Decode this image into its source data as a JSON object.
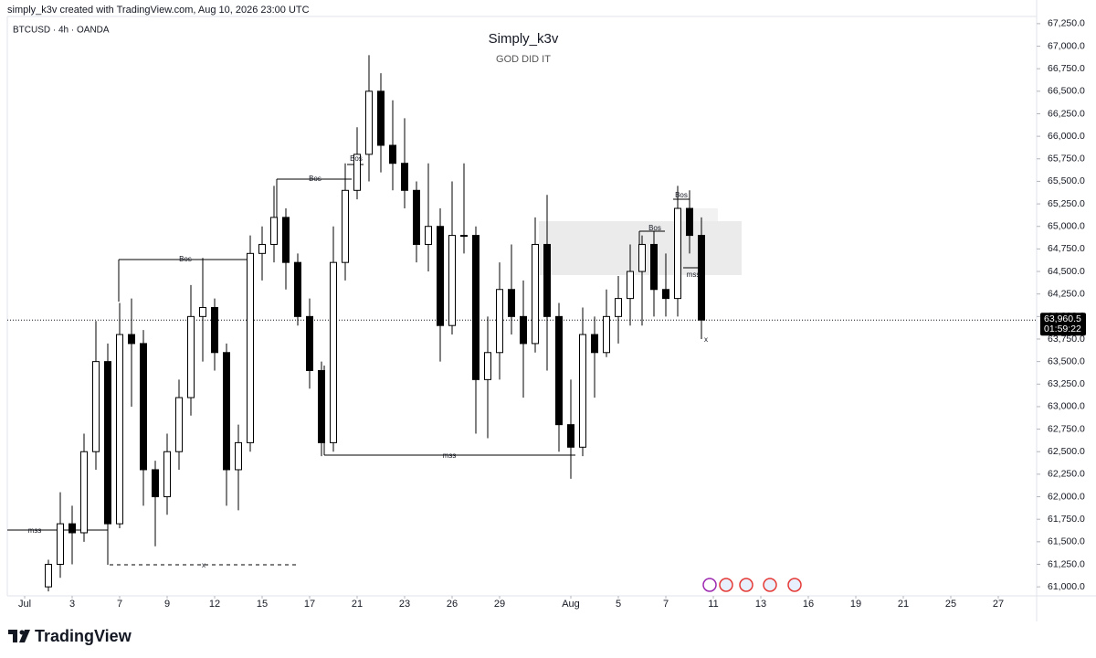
{
  "header": {
    "attribution": "simply_k3v created with TradingView.com, Aug 10, 2026 23:00 UTC",
    "logo": "TradingView"
  },
  "chart_data": {
    "type": "candlestick",
    "symbol": "BTCUSD · 4h · OANDA",
    "title": "Simply_k3v",
    "subtitle": "GOD DID IT",
    "categories": [
      "Jul",
      null,
      null,
      null,
      "3",
      null,
      null,
      null,
      "7",
      null,
      null,
      null,
      "9",
      null,
      null,
      null,
      "12",
      null,
      null,
      null,
      "15",
      null,
      null,
      null,
      "17",
      null,
      null,
      null,
      "21",
      null,
      null,
      null,
      "23",
      null,
      null,
      null,
      "26",
      null,
      null,
      null,
      "29",
      null,
      null,
      null,
      null,
      null,
      "Aug",
      null,
      null,
      null,
      "5",
      null,
      null,
      null,
      "7",
      null,
      null,
      null,
      "11",
      null,
      null,
      null,
      "13",
      null,
      null,
      null,
      "16",
      null,
      null,
      null,
      "19",
      null,
      null,
      null,
      "21",
      null,
      null,
      null,
      "25",
      null,
      null,
      null,
      "27",
      null,
      null
    ],
    "open": [
      null,
      null,
      61000,
      61250,
      61700,
      61600,
      62500,
      63500,
      61700,
      63800,
      63700,
      62300,
      62000,
      62500,
      63100,
      64000,
      64100,
      63600,
      62300,
      62600,
      64700,
      64800,
      65100,
      64600,
      64000,
      63400,
      62600,
      64600,
      65400,
      65800,
      66500,
      65900,
      65700,
      65400,
      64800,
      65000,
      63900,
      64900,
      64900,
      63300,
      63600,
      64300,
      64000,
      63700,
      64800,
      64000,
      62800,
      62550,
      63800,
      63600,
      64000,
      64200,
      64500,
      64800,
      64300,
      64200,
      65200,
      64900,
      null,
      null,
      null,
      null,
      null,
      null,
      null,
      null,
      null,
      null,
      null,
      null,
      null,
      null,
      null,
      null,
      null,
      null,
      null,
      null,
      null,
      null,
      null,
      null,
      null,
      null,
      null
    ],
    "high": [
      null,
      null,
      61300,
      62050,
      61900,
      62700,
      63950,
      63700,
      64150,
      64200,
      63850,
      62400,
      62700,
      63300,
      64350,
      64650,
      64200,
      63700,
      62800,
      64900,
      65000,
      65450,
      65200,
      64700,
      64200,
      63500,
      65000,
      65700,
      66100,
      66900,
      66700,
      66400,
      66200,
      65500,
      65700,
      65200,
      65500,
      65700,
      65000,
      64000,
      64600,
      64800,
      64400,
      65100,
      65350,
      64150,
      63300,
      64100,
      64000,
      64300,
      64450,
      64800,
      64900,
      64950,
      64700,
      65450,
      65400,
      65100,
      null,
      null,
      null,
      null,
      null,
      null,
      null,
      null,
      null,
      null,
      null,
      null,
      null,
      null,
      null,
      null,
      null,
      null,
      null,
      null,
      null,
      null,
      null,
      null,
      null,
      null,
      null
    ],
    "low": [
      null,
      null,
      60950,
      61100,
      61250,
      61500,
      62300,
      61600,
      61650,
      63000,
      61900,
      61450,
      61800,
      62300,
      62900,
      63500,
      63400,
      61900,
      61850,
      62500,
      64400,
      64600,
      64300,
      63900,
      63200,
      62450,
      62500,
      64400,
      65300,
      65500,
      65600,
      65400,
      65200,
      64600,
      64500,
      63500,
      63800,
      64700,
      62700,
      62650,
      63300,
      63800,
      63100,
      63600,
      63400,
      62500,
      62200,
      62450,
      63100,
      63550,
      63700,
      63900,
      63900,
      64000,
      64000,
      64000,
      64700,
      63750,
      null,
      null,
      null,
      null,
      null,
      null,
      null,
      null,
      null,
      null,
      null,
      null,
      null,
      null,
      null,
      null,
      null,
      null,
      null,
      null,
      null,
      null,
      null,
      null,
      null,
      null,
      null
    ],
    "close": [
      null,
      null,
      61250,
      61700,
      61600,
      62500,
      63500,
      61700,
      63800,
      63700,
      62300,
      62000,
      62500,
      63100,
      64000,
      64100,
      63600,
      62300,
      62600,
      64700,
      64800,
      65100,
      64600,
      64000,
      63400,
      62600,
      64600,
      65400,
      65800,
      66500,
      65900,
      65700,
      65400,
      64800,
      65000,
      63900,
      64900,
      64900,
      63300,
      63600,
      64300,
      64000,
      63700,
      64800,
      64000,
      62800,
      62550,
      63800,
      63600,
      64000,
      64200,
      64500,
      64800,
      64300,
      64200,
      65200,
      64900,
      63960.5,
      null,
      null,
      null,
      null,
      null,
      null,
      null,
      null,
      null,
      null,
      null,
      null,
      null,
      null,
      null,
      null,
      null,
      null,
      null,
      null,
      null,
      null,
      null,
      null,
      null,
      null,
      null
    ],
    "up_color": "#ffffff",
    "down_color": "#000000",
    "ylim": [
      60900,
      67330
    ],
    "yticks": [
      {
        "value": 61000,
        "label": "61,000.0"
      },
      {
        "value": 61250,
        "label": "61,250.0"
      },
      {
        "value": 61500,
        "label": "61,500.0"
      },
      {
        "value": 61750,
        "label": "61,750.0"
      },
      {
        "value": 62000,
        "label": "62,000.0"
      },
      {
        "value": 62250,
        "label": "62,250.0"
      },
      {
        "value": 62500,
        "label": "62,500.0"
      },
      {
        "value": 62750,
        "label": "62,750.0"
      },
      {
        "value": 63000,
        "label": "63,000.0"
      },
      {
        "value": 63250,
        "label": "63,250.0"
      },
      {
        "value": 63500,
        "label": "63,500.0"
      },
      {
        "value": 63750,
        "label": "63,750.0"
      },
      {
        "value": 64000,
        "label": "64,000.0"
      },
      {
        "value": 64250,
        "label": "64,250.0"
      },
      {
        "value": 64500,
        "label": "64,500.0"
      },
      {
        "value": 64750,
        "label": "64,750.0"
      },
      {
        "value": 65000,
        "label": "65,000.0"
      },
      {
        "value": 65250,
        "label": "65,250.0"
      },
      {
        "value": 65500,
        "label": "65,500.0"
      },
      {
        "value": 65750,
        "label": "65,750.0"
      },
      {
        "value": 66000,
        "label": "66,000.0"
      },
      {
        "value": 66250,
        "label": "66,250.0"
      },
      {
        "value": 66500,
        "label": "66,500.0"
      },
      {
        "value": 66750,
        "label": "66,750.0"
      },
      {
        "value": 67000,
        "label": "67,000.0"
      },
      {
        "value": 67250,
        "label": "67,250.0"
      }
    ],
    "last_price": {
      "value": 63960.5,
      "label": "63,960.5"
    },
    "countdown": "01:59:22",
    "annotations": [
      "mss",
      "x",
      "Bos",
      "Bos",
      "Bos",
      "mss",
      "Bos",
      "Bos",
      "mss",
      "x"
    ]
  }
}
